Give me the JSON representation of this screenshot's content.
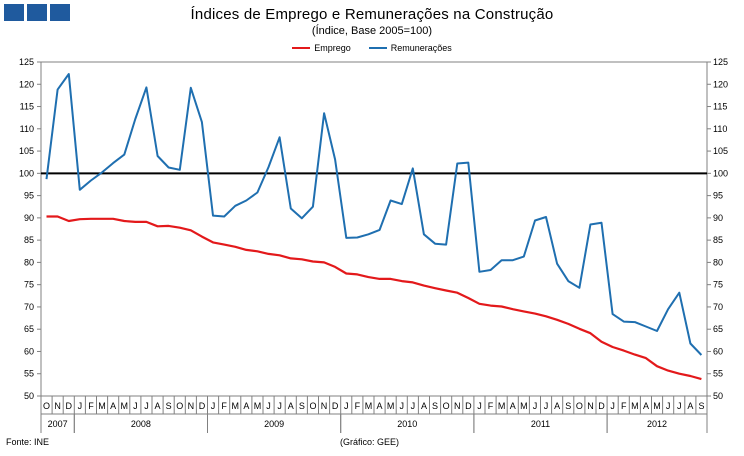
{
  "header": {
    "title": "Índices de Emprego e Remunerações na Construção",
    "subtitle": "(Índice,  Base 2005=100)"
  },
  "legend": {
    "items": [
      {
        "label": "Emprego",
        "color": "#e3191b"
      },
      {
        "label": "Remunerações",
        "color": "#1f6fb0"
      }
    ]
  },
  "footer": {
    "source": "Fonte: INE",
    "credit": "(Gráfico: GEE)"
  },
  "chart_data": {
    "type": "line",
    "title": "Índices de Emprego e Remunerações na Construção",
    "subtitle": "(Índice,  Base 2005=100)",
    "ylim": [
      50,
      125
    ],
    "yticks": [
      50,
      55,
      60,
      65,
      70,
      75,
      80,
      85,
      90,
      95,
      100,
      105,
      110,
      115,
      120,
      125
    ],
    "reference_line": 100,
    "month_labels": [
      "O",
      "N",
      "D",
      "J",
      "F",
      "M",
      "A",
      "M",
      "J",
      "J",
      "A",
      "S",
      "O",
      "N",
      "D",
      "J",
      "F",
      "M",
      "A",
      "M",
      "J",
      "J",
      "A",
      "S",
      "O",
      "N",
      "D",
      "J",
      "F",
      "M",
      "A",
      "M",
      "J",
      "J",
      "A",
      "S",
      "O",
      "N",
      "D",
      "J",
      "F",
      "M",
      "A",
      "M",
      "J",
      "J",
      "A",
      "S",
      "O",
      "N",
      "D",
      "J",
      "F",
      "M",
      "A",
      "M",
      "J",
      "J",
      "A",
      "S"
    ],
    "years": [
      {
        "label": "2007",
        "start": 0,
        "end": 3
      },
      {
        "label": "2008",
        "start": 3,
        "end": 15
      },
      {
        "label": "2009",
        "start": 15,
        "end": 27
      },
      {
        "label": "2010",
        "start": 27,
        "end": 39
      },
      {
        "label": "2011",
        "start": 39,
        "end": 51
      },
      {
        "label": "2012",
        "start": 51,
        "end": 60
      }
    ],
    "series": [
      {
        "name": "Emprego",
        "color": "#e3191b",
        "values": [
          90.3,
          90.3,
          89.3,
          89.7,
          89.8,
          89.8,
          89.8,
          89.3,
          89.1,
          89.1,
          88.1,
          88.2,
          87.8,
          87.2,
          85.8,
          84.5,
          84.0,
          83.5,
          82.8,
          82.5,
          81.9,
          81.6,
          80.9,
          80.7,
          80.2,
          80.0,
          79.0,
          77.5,
          77.3,
          76.7,
          76.3,
          76.3,
          75.8,
          75.5,
          74.8,
          74.2,
          73.7,
          73.2,
          72.0,
          70.7,
          70.3,
          70.1,
          69.5,
          69.0,
          68.5,
          67.9,
          67.1,
          66.2,
          65.1,
          64.1,
          62.2,
          61.0,
          60.2,
          59.3,
          58.5,
          56.7,
          55.7,
          55.0,
          54.5,
          53.8
        ]
      },
      {
        "name": "Remunerações",
        "color": "#1f6fb0",
        "values": [
          98.7,
          118.8,
          122.3,
          96.3,
          98.4,
          100.2,
          102.3,
          104.2,
          112.2,
          119.3,
          103.9,
          101.3,
          100.8,
          119.2,
          111.5,
          90.5,
          90.3,
          92.7,
          93.9,
          95.7,
          101.4,
          108.1,
          92.1,
          89.9,
          92.5,
          113.5,
          103.1,
          85.5,
          85.6,
          86.3,
          87.3,
          93.9,
          93.1,
          101.1,
          86.3,
          84.2,
          84.0,
          102.2,
          102.4,
          77.9,
          78.3,
          80.5,
          80.5,
          81.3,
          89.4,
          90.2,
          79.7,
          75.8,
          74.3,
          88.5,
          88.9,
          68.4,
          66.7,
          66.6,
          65.6,
          64.6,
          69.5,
          73.2,
          61.8,
          59.2
        ]
      }
    ]
  }
}
